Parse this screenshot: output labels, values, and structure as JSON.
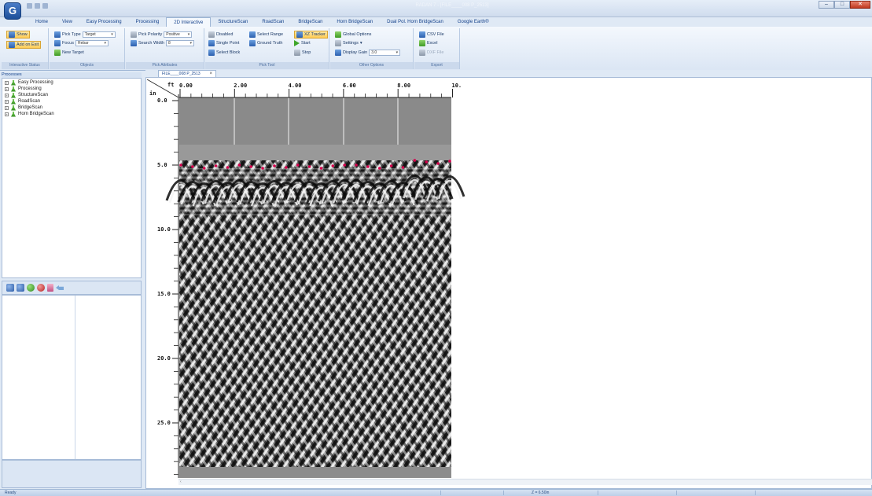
{
  "app": {
    "window_title": "RADAN 7 - [FILE____008 P_2513]",
    "orb_letter": "G",
    "window_controls": {
      "minimize": "–",
      "maximize": "□",
      "close": "✕"
    }
  },
  "ribbon": {
    "tabs": [
      {
        "label": "Home",
        "active": false
      },
      {
        "label": "View",
        "active": false
      },
      {
        "label": "Easy Processing",
        "active": false
      },
      {
        "label": "Processing",
        "active": false
      },
      {
        "label": "2D Interactive",
        "active": true
      },
      {
        "label": "StructureScan",
        "active": false
      },
      {
        "label": "RoadScan",
        "active": false
      },
      {
        "label": "BridgeScan",
        "active": false
      },
      {
        "label": "Horn BridgeScan",
        "active": false
      },
      {
        "label": "Dual Pol. Horn BridgeScan",
        "active": false
      },
      {
        "label": "Google Earth®",
        "active": false
      }
    ],
    "interactive_status": {
      "group_label": "Interactive Status",
      "show_label": "Show",
      "add_on_exit_label": "Add on Exit"
    },
    "objects": {
      "group_label": "Objects",
      "pick_type_label": "Pick Type",
      "pick_type_value": "Target",
      "focus_label": "Focus",
      "focus_value": "Rebar",
      "new_target_label": "New Target"
    },
    "pick_attributes": {
      "group_label": "Pick Attributes",
      "pick_polarity_label": "Pick Polarity",
      "pick_polarity_value": "Positive",
      "search_width_label": "Search Width",
      "search_width_value": "8"
    },
    "pick_tool": {
      "group_label": "Pick Tool",
      "disabled_label": "Disabled",
      "select_range_label": "Select Range",
      "xz_tracker_label": "XZ Tracker",
      "single_point_label": "Single Point",
      "ground_truth_label": "Ground Truth",
      "start_label": "Start",
      "select_block_label": "Select Block",
      "stop_label": "Stop"
    },
    "other_options": {
      "group_label": "Other Options",
      "global_options_label": "Global Options",
      "settings_label": "Settings",
      "display_gain_label": "Display Gain",
      "display_gain_value": "3.0"
    },
    "export": {
      "group_label": "Export",
      "csv_label": "CSV File",
      "excel_label": "Excel",
      "dxf_label": "DXF File"
    }
  },
  "left_panel": {
    "header": "Processes",
    "tree_items": [
      "Easy Processing",
      "Processing",
      "StructureScan",
      "RoadScan",
      "BridgeScan",
      "Horn BridgeScan"
    ]
  },
  "document": {
    "tab_label": "FILE____008 P_2513",
    "tab_close": "×",
    "x_unit": "ft",
    "y_unit": "in",
    "x_ticks": [
      "0.00",
      "2.00",
      "4.00",
      "6.00",
      "8.00",
      "10."
    ],
    "y_ticks": [
      "0.0",
      "5.0",
      "10.0",
      "15.0",
      "20.0",
      "25.0"
    ],
    "picks_count_shown": 24
  },
  "status_bar": {
    "ready": "Ready",
    "depth_readout": "Z = 6.50in"
  }
}
